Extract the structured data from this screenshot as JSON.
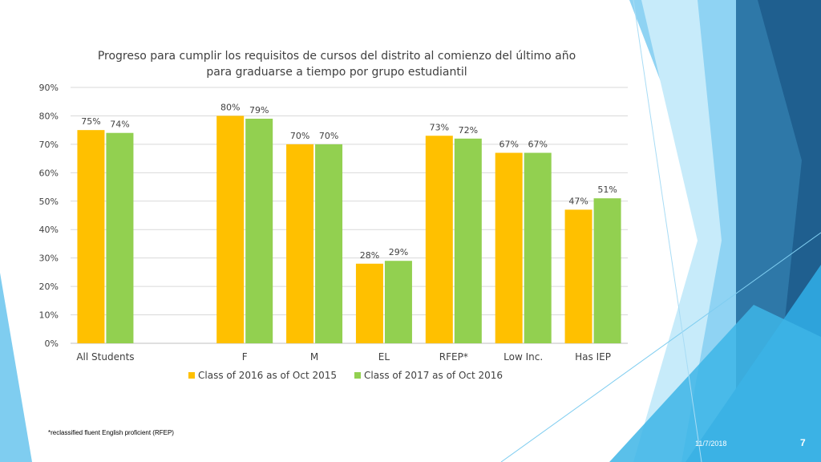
{
  "slide": {
    "footnote": "*reclassified fluent English proficient (RFEP)",
    "date": "11/7/2018",
    "page_number": "7"
  },
  "colors": {
    "series_2016": "#FFC000",
    "series_2017": "#92D050",
    "gridline": "#d9d9d9",
    "text": "#404040"
  },
  "chart_data": {
    "type": "bar",
    "title_line1": "Progreso para cumplir los requisitos de cursos del distrito al comienzo del último año",
    "title_line2": "para graduarse a tiempo por grupo estudiantil",
    "xlabel": "",
    "ylabel": "",
    "ylim": [
      0,
      90
    ],
    "yticks": [
      "0%",
      "10%",
      "20%",
      "30%",
      "40%",
      "50%",
      "60%",
      "70%",
      "80%",
      "90%"
    ],
    "grid": true,
    "legend_position": "bottom",
    "categories": [
      "All Students",
      "",
      "F",
      "M",
      "EL",
      "RFEP*",
      "Low Inc.",
      "Has IEP"
    ],
    "series": [
      {
        "name": "Class of 2016 as of Oct 2015",
        "values": [
          75,
          null,
          80,
          70,
          28,
          73,
          67,
          47
        ],
        "labels": [
          "75%",
          "",
          "80%",
          "70%",
          "28%",
          "73%",
          "67%",
          "47%"
        ]
      },
      {
        "name": "Class of 2017 as of Oct 2016",
        "values": [
          74,
          null,
          79,
          70,
          29,
          72,
          67,
          51
        ],
        "labels": [
          "74%",
          "",
          "79%",
          "70%",
          "29%",
          "72%",
          "67%",
          "51%"
        ]
      }
    ]
  }
}
